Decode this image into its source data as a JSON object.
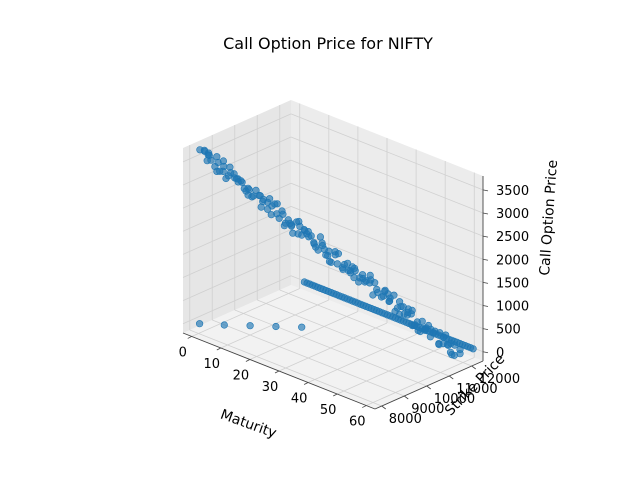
{
  "chart_data": {
    "type": "scatter",
    "projection": "3d",
    "title": "Call Option Price for NIFTY",
    "xlabel": "Maturity",
    "ylabel": "Strike Price",
    "zlabel": "Call Option Price",
    "xlim": [
      -3,
      63
    ],
    "ylim": [
      7700,
      12500
    ],
    "zlim": [
      -200,
      3800
    ],
    "x_ticks": [
      0,
      10,
      20,
      30,
      40,
      50,
      60
    ],
    "x_tick_labels": [
      "0",
      "10",
      "20",
      "30",
      "40",
      "50",
      "60"
    ],
    "y_ticks": [
      8000,
      9000,
      10000,
      11000,
      12000
    ],
    "y_tick_labels": [
      "8000",
      "9000",
      "10000",
      "11000",
      "12000"
    ],
    "z_ticks": [
      0,
      500,
      1000,
      1500,
      2000,
      2500,
      3000,
      3500
    ],
    "z_tick_labels": [
      "0",
      "500",
      "1000",
      "1500",
      "2000",
      "2500",
      "3000",
      "3500"
    ],
    "grid": true,
    "marker_color": "#1f77b4",
    "pane_color": "#f2f2f2",
    "series": [
      {
        "groups": [
          {
            "kind": "front_ridge",
            "x_range": [
              0,
              60
            ],
            "strike_range": [
              8100,
              11850
            ],
            "price_range": [
              3700,
              1
            ],
            "count": 160,
            "jitter": 180
          },
          {
            "kind": "back_line",
            "x_range": [
              2,
              60
            ],
            "strike_range": [
              12450,
              12450
            ],
            "price_range": [
              0,
              0
            ],
            "count": 64,
            "jitter": 0
          },
          {
            "kind": "outliers",
            "points": [
              [
                0,
                8050,
                0
              ],
              [
                5,
                8500,
                0
              ],
              [
                10,
                9000,
                0
              ],
              [
                15,
                9500,
                0
              ],
              [
                20,
                10000,
                0
              ]
            ]
          }
        ]
      }
    ]
  }
}
